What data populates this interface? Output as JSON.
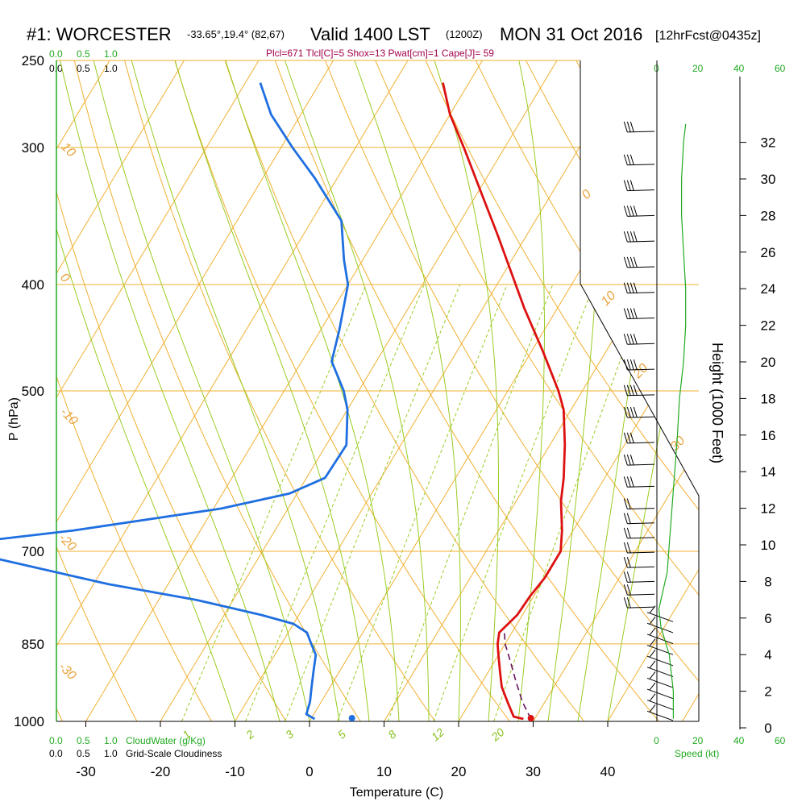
{
  "header": {
    "station": "#1: WORCESTER",
    "coords": "-33.65°,19.4° (82,67)",
    "valid": "Valid 1400 LST",
    "valid_z": "(1200Z)",
    "date": "MON 31 Oct 2016",
    "forecast": "[12hrFcst@0435z]",
    "indices": "Plcl=671 Tlcl[C]=5 Shox=13 Pwat[cm]=1 Cape[J]= 59"
  },
  "scales": {
    "cloudwater_top": [
      "0.0",
      "0.5",
      "1.0"
    ],
    "cloudiness_top": [
      "0.0",
      "0.5",
      "1.0"
    ],
    "cloudwater_bottom": [
      "0.0",
      "0.5",
      "1.0"
    ],
    "cloudwater_label": "CloudWater (g/Kg)",
    "cloudiness_bottom": [
      "0.0",
      "0.5",
      "1.0"
    ],
    "cloudiness_label": "Grid-Scale Cloudiness",
    "speed_ticks": [
      "0",
      "20",
      "40",
      "60"
    ],
    "speed_label": "Speed (kt)"
  },
  "colors": {
    "temperature": "#dd1111",
    "dewpoint": "#1f6fe0",
    "isotherm": "#f0b030",
    "dry_adiabat": "#f0b030",
    "moist_adiabat": "#99cc22",
    "mixing_ratio": "#99cc22",
    "wind_speed": "#22aa22",
    "parcel": "#66115a"
  },
  "chart_data": {
    "type": "skew-t",
    "xlabel": "Temperature (C)",
    "ylabel": "P (hPa)",
    "y2label": "Height (1000 Feet)",
    "pressure_ticks": [
      250,
      300,
      400,
      500,
      700,
      850,
      1000
    ],
    "temperature_ticks": [
      -30,
      -20,
      -10,
      0,
      10,
      20,
      30,
      40
    ],
    "height_ticks_kft": [
      0,
      2,
      4,
      6,
      8,
      10,
      12,
      14,
      16,
      18,
      20,
      22,
      24,
      26,
      28,
      30,
      32
    ],
    "isotherm_labels": [
      "10",
      "0",
      "-10",
      "-20",
      "-30",
      "0",
      "10",
      "20",
      "30"
    ],
    "mixing_ratio_labels": [
      "1",
      "2",
      "3",
      "5",
      "8",
      "12",
      "20"
    ],
    "temperature_profile": [
      {
        "p": 995,
        "t": 28.5
      },
      {
        "p": 990,
        "t": 27.0
      },
      {
        "p": 960,
        "t": 25.0
      },
      {
        "p": 930,
        "t": 23.0
      },
      {
        "p": 900,
        "t": 21.5
      },
      {
        "p": 870,
        "t": 20.0
      },
      {
        "p": 850,
        "t": 19.0
      },
      {
        "p": 830,
        "t": 18.3
      },
      {
        "p": 815,
        "t": 18.8
      },
      {
        "p": 800,
        "t": 19.3
      },
      {
        "p": 770,
        "t": 19.5
      },
      {
        "p": 740,
        "t": 20.0
      },
      {
        "p": 700,
        "t": 20.0
      },
      {
        "p": 670,
        "t": 18.5
      },
      {
        "p": 630,
        "t": 16.0
      },
      {
        "p": 600,
        "t": 14.5
      },
      {
        "p": 560,
        "t": 12.0
      },
      {
        "p": 520,
        "t": 9.0
      },
      {
        "p": 500,
        "t": 6.8
      },
      {
        "p": 460,
        "t": 1.5
      },
      {
        "p": 420,
        "t": -4.5
      },
      {
        "p": 400,
        "t": -7.5
      },
      {
        "p": 360,
        "t": -14.0
      },
      {
        "p": 330,
        "t": -19.5
      },
      {
        "p": 300,
        "t": -25.5
      },
      {
        "p": 280,
        "t": -30.0
      },
      {
        "p": 262,
        "t": -33.5
      }
    ],
    "dewpoint_profile": [
      {
        "p": 995,
        "td": 0.5
      },
      {
        "p": 985,
        "td": -1.0
      },
      {
        "p": 960,
        "td": -1.5
      },
      {
        "p": 930,
        "td": -2.5
      },
      {
        "p": 900,
        "td": -3.5
      },
      {
        "p": 870,
        "td": -4.5
      },
      {
        "p": 850,
        "td": -6.0
      },
      {
        "p": 830,
        "td": -7.5
      },
      {
        "p": 815,
        "td": -10.0
      },
      {
        "p": 800,
        "td": -15.0
      },
      {
        "p": 775,
        "td": -25.0
      },
      {
        "p": 750,
        "td": -38.0
      },
      {
        "p": 700,
        "td": -60.0
      },
      {
        "p": 690,
        "td": -62.0
      },
      {
        "p": 670,
        "td": -47.0
      },
      {
        "p": 640,
        "td": -29.0
      },
      {
        "p": 620,
        "td": -21.0
      },
      {
        "p": 600,
        "td": -17.5
      },
      {
        "p": 560,
        "td": -17.3
      },
      {
        "p": 520,
        "td": -20.0
      },
      {
        "p": 500,
        "td": -22.0
      },
      {
        "p": 470,
        "td": -26.0
      },
      {
        "p": 440,
        "td": -27.5
      },
      {
        "p": 400,
        "td": -30.0
      },
      {
        "p": 380,
        "td": -32.5
      },
      {
        "p": 350,
        "td": -36.0
      },
      {
        "p": 320,
        "td": -43.0
      },
      {
        "p": 300,
        "td": -48.5
      },
      {
        "p": 280,
        "td": -54.0
      },
      {
        "p": 262,
        "td": -58.0
      }
    ],
    "parcel_profile": [
      {
        "p": 995,
        "t": 29.5
      },
      {
        "p": 960,
        "t": 27.0
      },
      {
        "p": 920,
        "t": 24.5
      },
      {
        "p": 880,
        "t": 22.0
      },
      {
        "p": 850,
        "t": 20.0
      },
      {
        "p": 830,
        "t": 19.0
      }
    ],
    "surface_temperature": 29.5,
    "surface_dewpoint": 5.5,
    "surface_pressure": 995,
    "wind_speed_profile_kt": [
      {
        "h": 0.5,
        "s": 8
      },
      {
        "h": 2.0,
        "s": 8
      },
      {
        "h": 4.0,
        "s": 6
      },
      {
        "h": 5.5,
        "s": 2
      },
      {
        "h": 6.5,
        "s": 1
      },
      {
        "h": 7.5,
        "s": 3
      },
      {
        "h": 8.5,
        "s": 5
      },
      {
        "h": 10.0,
        "s": 6
      },
      {
        "h": 11.5,
        "s": 7
      },
      {
        "h": 13.0,
        "s": 8
      },
      {
        "h": 14.5,
        "s": 9
      },
      {
        "h": 16.0,
        "s": 10
      },
      {
        "h": 18.0,
        "s": 11
      },
      {
        "h": 20.0,
        "s": 13
      },
      {
        "h": 22.0,
        "s": 14
      },
      {
        "h": 24.0,
        "s": 14
      },
      {
        "h": 26.0,
        "s": 13
      },
      {
        "h": 28.0,
        "s": 12
      },
      {
        "h": 30.0,
        "s": 12
      },
      {
        "h": 32.0,
        "s": 13
      },
      {
        "h": 33.0,
        "s": 14
      }
    ],
    "wind_barbs": [
      {
        "h": 0.4,
        "s": 15
      },
      {
        "h": 1.0,
        "s": 15
      },
      {
        "h": 1.6,
        "s": 15
      },
      {
        "h": 2.2,
        "s": 15
      },
      {
        "h": 2.8,
        "s": 15
      },
      {
        "h": 3.4,
        "s": 15
      },
      {
        "h": 4.0,
        "s": 15
      },
      {
        "h": 4.6,
        "s": 15
      },
      {
        "h": 5.2,
        "s": 15
      },
      {
        "h": 5.8,
        "s": 15
      },
      {
        "h": 6.6,
        "s": 20
      },
      {
        "h": 7.3,
        "s": 20
      },
      {
        "h": 8.0,
        "s": 20
      },
      {
        "h": 8.8,
        "s": 20
      },
      {
        "h": 9.6,
        "s": 20
      },
      {
        "h": 10.4,
        "s": 20
      },
      {
        "h": 11.2,
        "s": 20
      },
      {
        "h": 12.0,
        "s": 20
      },
      {
        "h": 13.2,
        "s": 25
      },
      {
        "h": 14.4,
        "s": 25
      },
      {
        "h": 15.6,
        "s": 30
      },
      {
        "h": 17.0,
        "s": 35
      },
      {
        "h": 18.2,
        "s": 35
      },
      {
        "h": 19.6,
        "s": 35
      },
      {
        "h": 21.0,
        "s": 40
      },
      {
        "h": 22.4,
        "s": 40
      },
      {
        "h": 23.8,
        "s": 40
      },
      {
        "h": 25.2,
        "s": 40
      },
      {
        "h": 26.6,
        "s": 40
      },
      {
        "h": 28.0,
        "s": 35
      },
      {
        "h": 29.4,
        "s": 30
      },
      {
        "h": 30.8,
        "s": 30
      },
      {
        "h": 32.6,
        "s": 30
      }
    ]
  }
}
